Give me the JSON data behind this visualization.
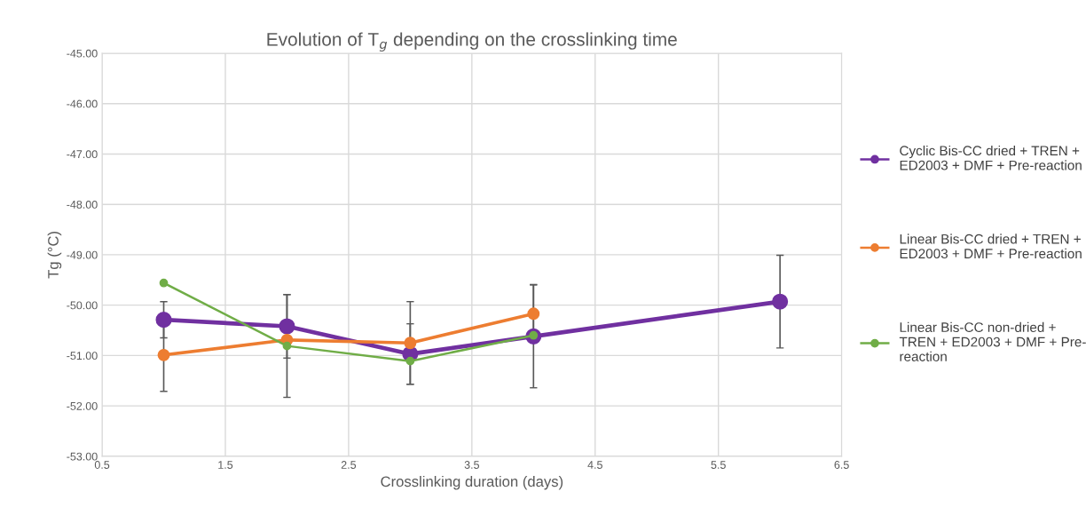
{
  "chart_data": {
    "type": "line",
    "title": "Evolution of T$_{g}$ depending on the crosslinking time",
    "xlabel": "Crosslinking duration (days)",
    "ylabel": "Tg (°C)",
    "xlim": [
      0.5,
      6.5
    ],
    "xticks": [
      0.5,
      1.5,
      2.5,
      3.5,
      4.5,
      5.5,
      6.5
    ],
    "ylim": [
      -53,
      -45
    ],
    "yticks": [
      {
        "value": -53,
        "label": "-53.00"
      },
      {
        "value": -52,
        "label": "-52.00"
      },
      {
        "value": -51,
        "label": "-51.00"
      },
      {
        "value": -50,
        "label": "-50.00"
      },
      {
        "value": -49,
        "label": "-49.00"
      },
      {
        "value": -48,
        "label": "-48.00"
      },
      {
        "value": -47,
        "label": "-47.00"
      },
      {
        "value": -46,
        "label": "-46.00"
      },
      {
        "value": -45,
        "label": "-45.00"
      }
    ],
    "grid": true,
    "legend": "right",
    "marker": "circle",
    "line_style": "solid",
    "series": [
      {
        "name": "Cyclic Bis-CC dried + TREN +\nED2003 + DMF + Pre-reaction",
        "color": "#7030a0",
        "x": [
          1,
          2,
          3,
          4,
          6
        ],
        "values": [
          -50.29,
          -50.42,
          -50.97,
          -50.62,
          -49.93
        ],
        "errors": [
          0.36,
          0.63,
          0.6,
          1.02,
          0.92
        ]
      },
      {
        "name": "Linear Bis-CC dried + TREN +\nED2003 + DMF + Pre-reaction",
        "color": "#ed7d31",
        "x": [
          1,
          2,
          3,
          4
        ],
        "values": [
          -50.99,
          -50.69,
          -50.75,
          -50.17
        ],
        "errors": [
          0.72,
          null,
          0.82,
          0.58
        ]
      },
      {
        "name": "Linear Bis-CC non-dried +\nTREN + ED2003 + DMF + Pre-\nreaction",
        "color": "#70ad47",
        "x": [
          1,
          2,
          3,
          4
        ],
        "values": [
          -49.56,
          -50.81,
          -51.11,
          -50.6
        ],
        "errors": [
          null,
          1.02,
          null,
          null
        ]
      }
    ]
  }
}
